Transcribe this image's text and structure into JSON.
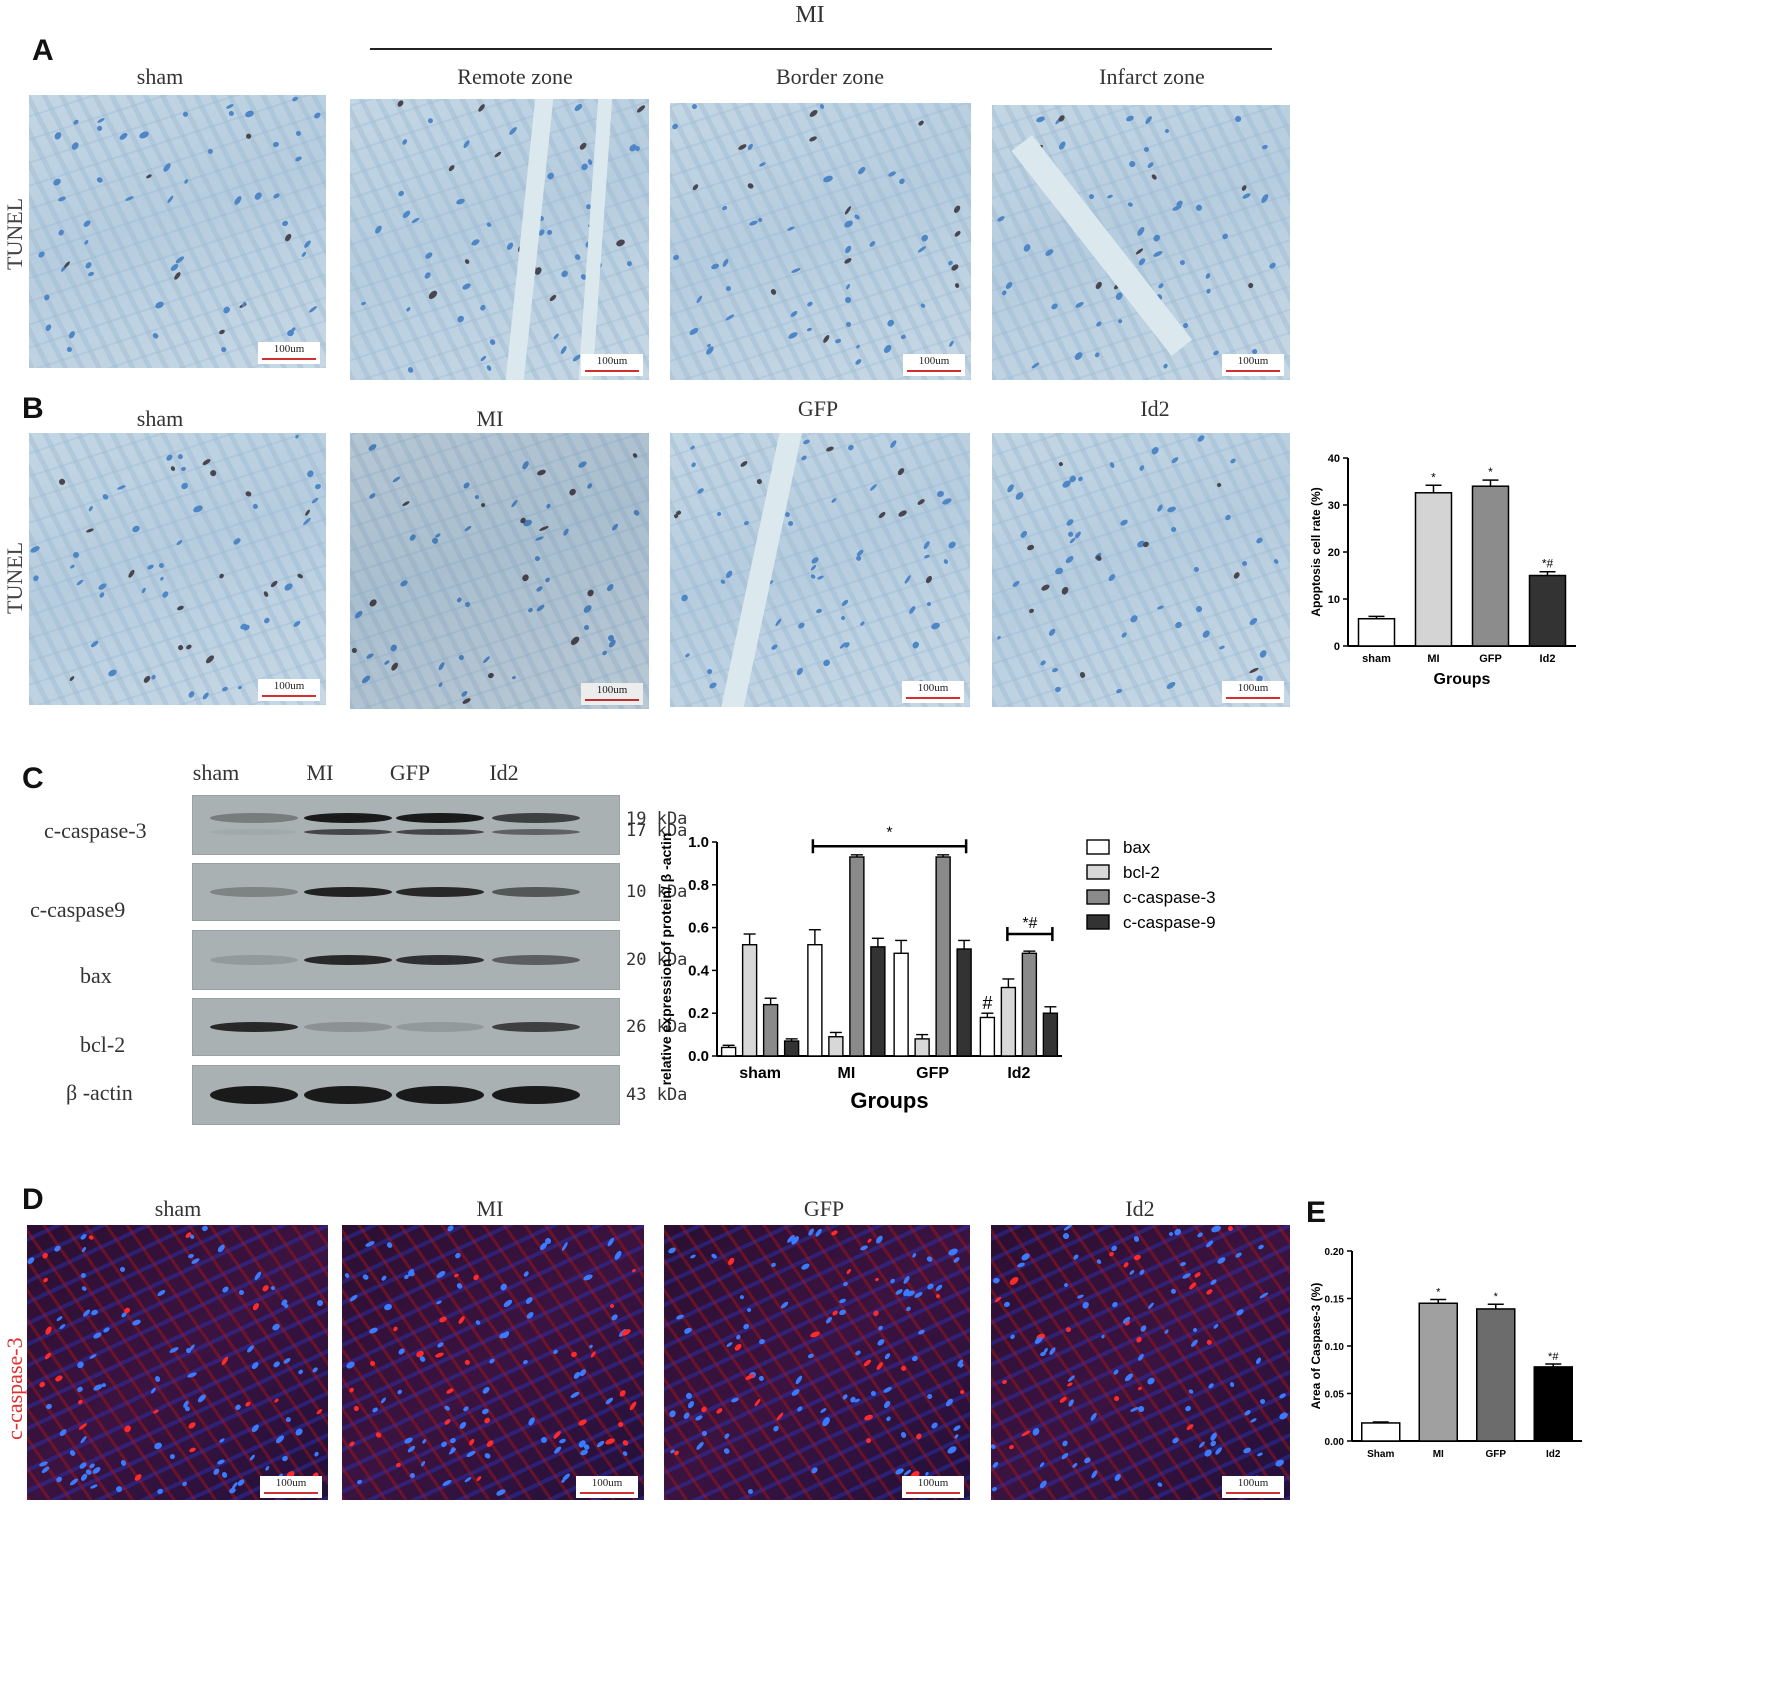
{
  "panels": {
    "A": {
      "letter": "A",
      "group_header": "MI",
      "row_label": "TUNEL",
      "columns": [
        "sham",
        "Remote zone",
        "Border zone",
        "Infarct zone"
      ],
      "scale": "100um"
    },
    "B": {
      "letter": "B",
      "row_label": "TUNEL",
      "columns": [
        "sham",
        "MI",
        "GFP",
        "Id2"
      ],
      "scale": "100um"
    },
    "C": {
      "letter": "C",
      "lanes": [
        "sham",
        "MI",
        "GFP",
        "Id2"
      ],
      "blots": [
        {
          "protein": "c-caspase-3",
          "kda": [
            "19 kDa",
            "17 kDa"
          ],
          "intensity": [
            0.35,
            1.0,
            1.0,
            0.75
          ]
        },
        {
          "protein": "c-caspase9",
          "kda": [
            "10 kDa"
          ],
          "intensity": [
            0.3,
            0.95,
            0.9,
            0.6
          ]
        },
        {
          "protein": "bax",
          "kda": [
            "20 kDa"
          ],
          "intensity": [
            0.15,
            0.9,
            0.85,
            0.55
          ]
        },
        {
          "protein": "bcl-2",
          "kda": [
            "26 kDa"
          ],
          "intensity": [
            0.9,
            0.2,
            0.15,
            0.75
          ]
        },
        {
          "protein": "β -actin",
          "kda": [
            "43 kDa"
          ],
          "intensity": [
            1.0,
            1.0,
            1.0,
            1.0
          ]
        }
      ]
    },
    "D": {
      "letter": "D",
      "row_label": "c-caspase-3",
      "columns": [
        "sham",
        "MI",
        "GFP",
        "Id2"
      ],
      "scale": "100um"
    },
    "E": {
      "letter": "E"
    }
  },
  "chart_data": [
    {
      "id": "B-apoptosis",
      "type": "bar",
      "categories": [
        "sham",
        "MI",
        "GFP",
        "Id2"
      ],
      "values": [
        5.8,
        32.6,
        34.0,
        15.0
      ],
      "errors": [
        0.5,
        1.6,
        1.3,
        0.8
      ],
      "annotations": [
        "",
        "*",
        "*",
        "*#"
      ],
      "colors": [
        "#ffffff",
        "#d4d4d4",
        "#8c8c8c",
        "#333333"
      ],
      "xlabel": "Groups",
      "ylabel": "Apoptosis cell rate (%)",
      "ylim": [
        0,
        40
      ],
      "yticks": [
        "0",
        "10",
        "20",
        "30",
        "40"
      ]
    },
    {
      "id": "C-western",
      "type": "bar",
      "categories": [
        "sham",
        "MI",
        "GFP",
        "Id2"
      ],
      "series": [
        {
          "name": "bax",
          "color": "#ffffff",
          "values": [
            0.04,
            0.52,
            0.48,
            0.18
          ],
          "errors": [
            0.01,
            0.07,
            0.06,
            0.02
          ]
        },
        {
          "name": "bcl-2",
          "color": "#d8d8d8",
          "values": [
            0.52,
            0.09,
            0.08,
            0.32
          ],
          "errors": [
            0.05,
            0.02,
            0.02,
            0.04
          ]
        },
        {
          "name": "c-caspase-3",
          "color": "#8a8a8a",
          "values": [
            0.24,
            0.93,
            0.93,
            0.48
          ],
          "errors": [
            0.03,
            0.01,
            0.01,
            0.01
          ]
        },
        {
          "name": "c-caspase-9",
          "color": "#333333",
          "values": [
            0.07,
            0.51,
            0.5,
            0.2
          ],
          "errors": [
            0.01,
            0.04,
            0.04,
            0.03
          ]
        }
      ],
      "xlabel": "Groups",
      "ylabel": "relative expression of protein/ β -actin",
      "ylim": [
        0,
        1.0
      ],
      "yticks": [
        "0.0",
        "0.2",
        "0.4",
        "0.6",
        "0.8",
        "1.0"
      ],
      "legend_position": "right",
      "bracket_mi_gfp": "*",
      "bracket_id2": "*#",
      "id2_bax_mark": "#"
    },
    {
      "id": "E-caspase-area",
      "type": "bar",
      "categories": [
        "Sham",
        "MI",
        "GFP",
        "Id2"
      ],
      "values": [
        0.019,
        0.145,
        0.139,
        0.078
      ],
      "errors": [
        0.001,
        0.004,
        0.005,
        0.003
      ],
      "annotations": [
        "",
        "*",
        "*",
        "*#"
      ],
      "colors": [
        "#ffffff",
        "#a0a0a0",
        "#6c6c6c",
        "#000000"
      ],
      "xlabel": "Groups",
      "ylabel": "Area of Caspase-3 (%)",
      "ylim": [
        0,
        0.2
      ],
      "yticks": [
        "0.00",
        "0.05",
        "0.10",
        "0.15",
        "0.20"
      ]
    }
  ]
}
